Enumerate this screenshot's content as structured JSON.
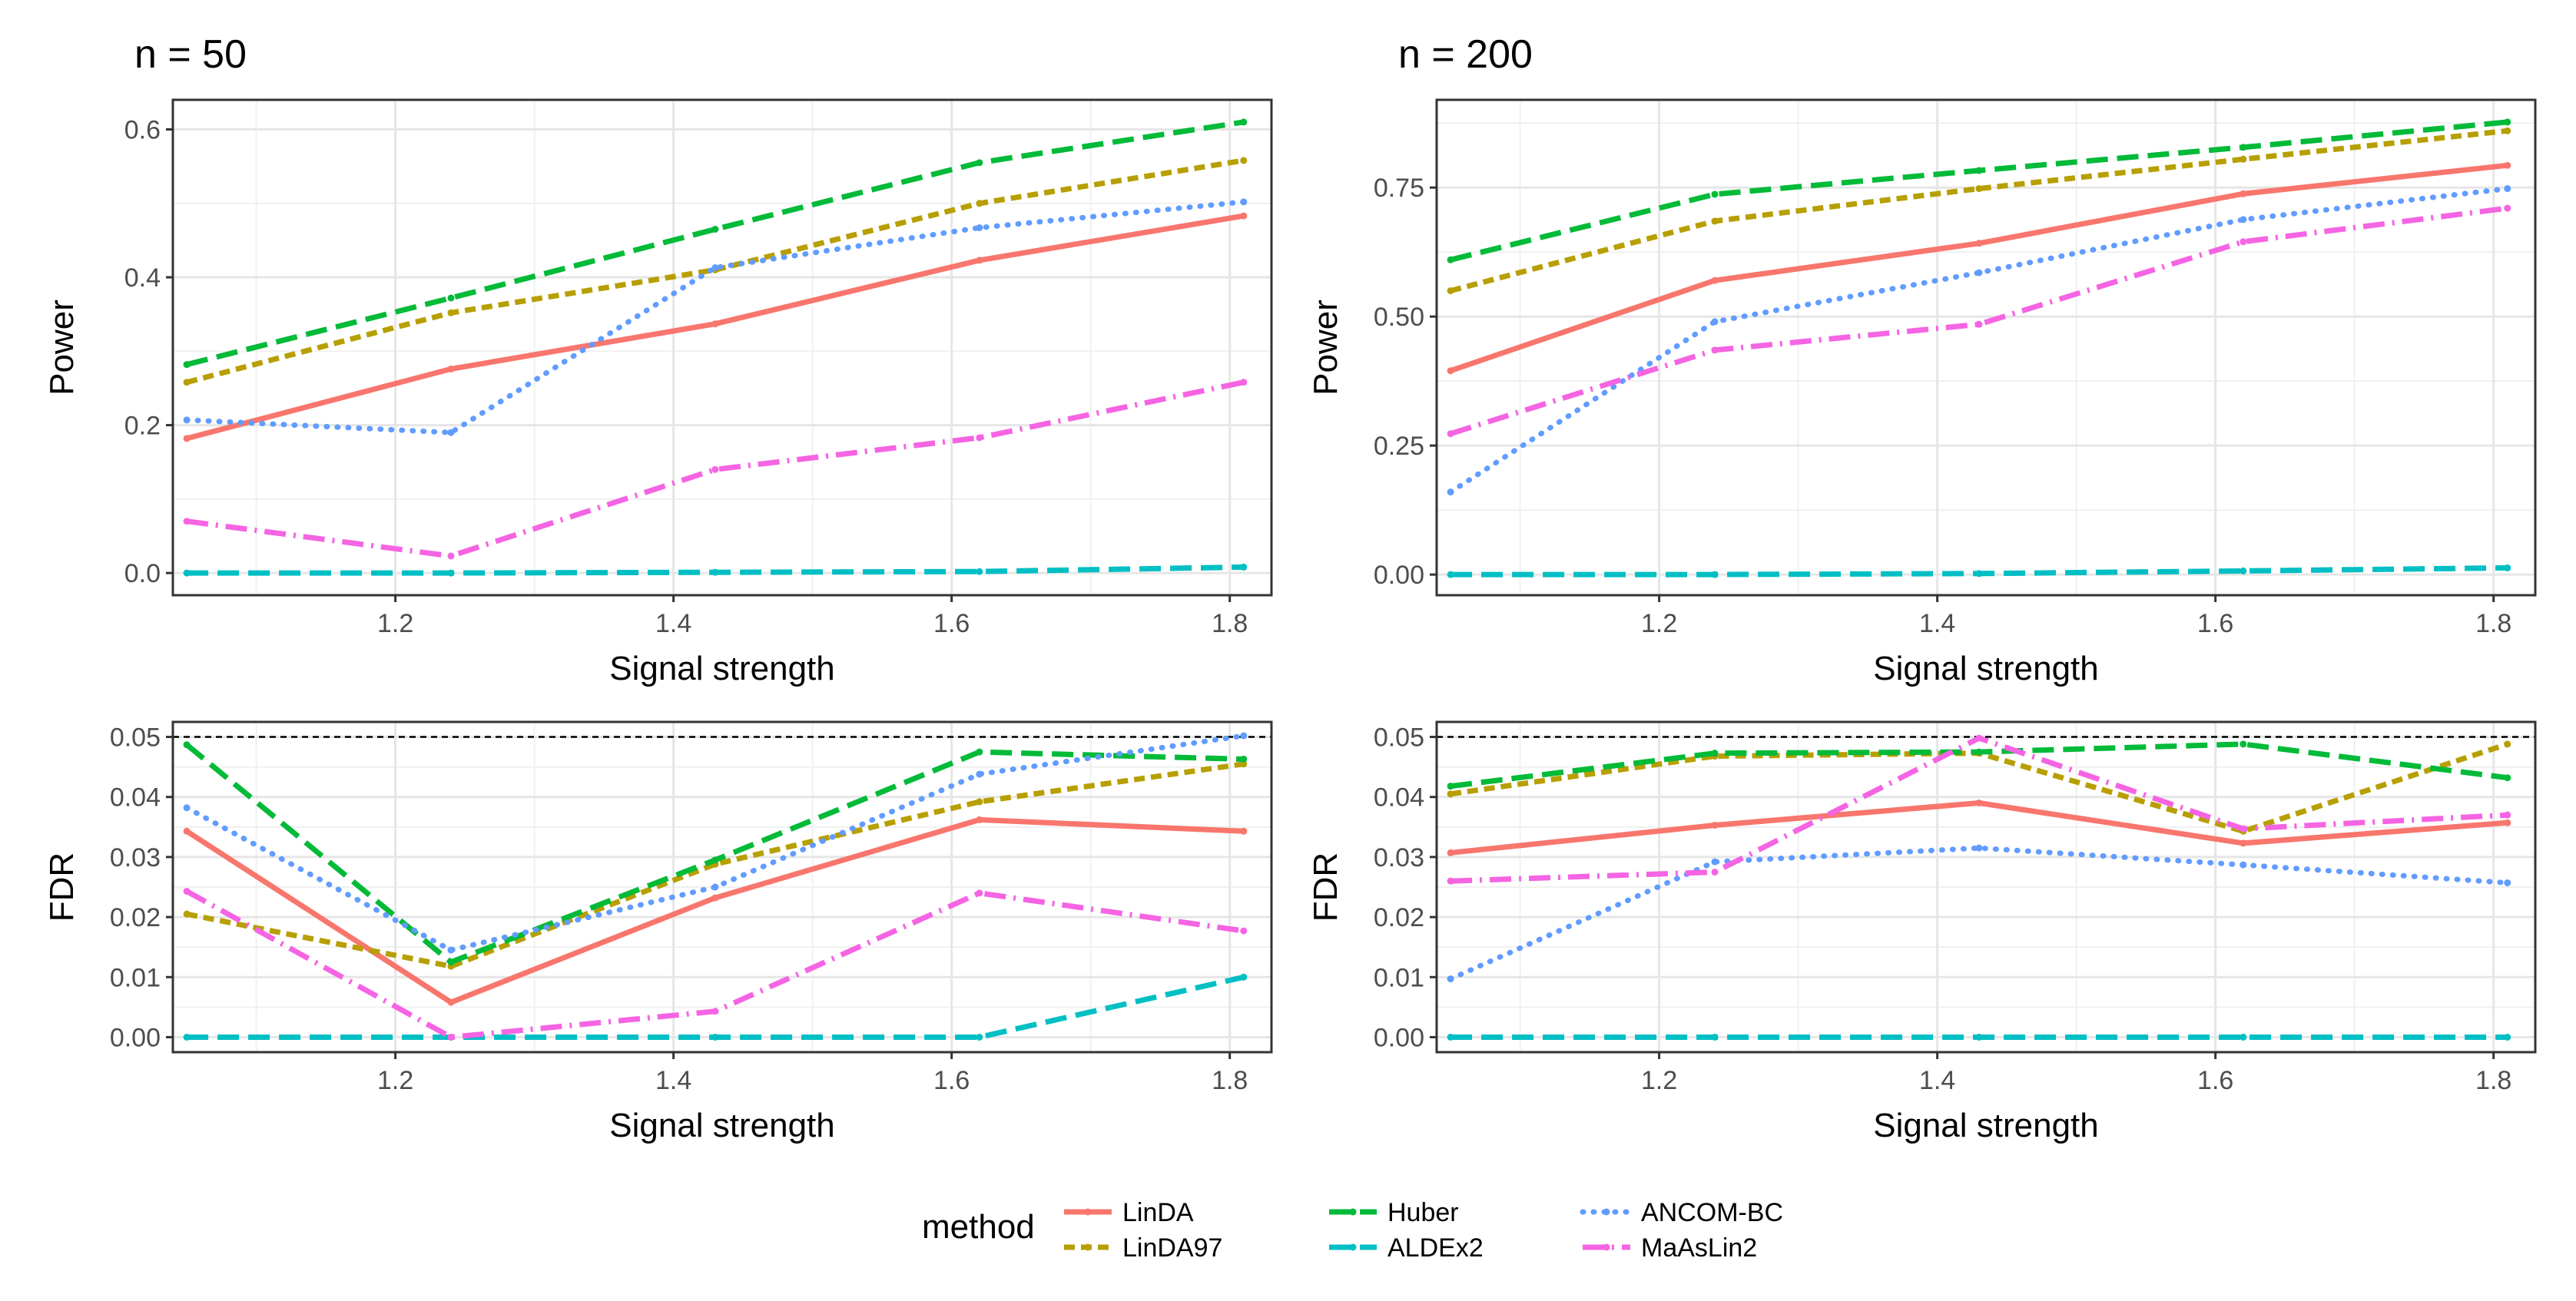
{
  "colors": {
    "LinDA": "#F8766D",
    "LinDA97": "#B79F00",
    "Huber": "#00BA38",
    "ALDEx2": "#00BFC4",
    "ANCOM-BC": "#619CFF",
    "MaAsLin2": "#F564E3"
  },
  "legend": {
    "title": "method",
    "entries": [
      "LinDA",
      "LinDA97",
      "Huber",
      "ALDEx2",
      "ANCOM-BC",
      "MaAsLin2"
    ]
  },
  "chart_data": [
    {
      "type": "line",
      "title": "n = 50",
      "xlabel": "Signal strength",
      "ylabel": "Power",
      "xlim": [
        1.04,
        1.83
      ],
      "ylim": [
        -0.03,
        0.64
      ],
      "xticks": [
        1.2,
        1.4,
        1.6,
        1.8
      ],
      "yticks": [
        0.0,
        0.2,
        0.4,
        0.6
      ],
      "ytick_labels": [
        "0.0",
        "0.2",
        "0.4",
        "0.6"
      ],
      "x": [
        1.05,
        1.24,
        1.43,
        1.62,
        1.81
      ],
      "series": [
        {
          "name": "LinDA",
          "values": [
            0.182,
            0.276,
            0.337,
            0.423,
            0.483
          ]
        },
        {
          "name": "LinDA97",
          "values": [
            0.258,
            0.352,
            0.41,
            0.5,
            0.558
          ]
        },
        {
          "name": "Huber",
          "values": [
            0.282,
            0.372,
            0.465,
            0.555,
            0.61
          ]
        },
        {
          "name": "ALDEx2",
          "values": [
            0.0,
            0.0,
            0.001,
            0.002,
            0.008
          ]
        },
        {
          "name": "ANCOM-BC",
          "values": [
            0.207,
            0.19,
            0.413,
            0.467,
            0.502
          ]
        },
        {
          "name": "MaAsLin2",
          "values": [
            0.07,
            0.023,
            0.14,
            0.183,
            0.258
          ]
        }
      ]
    },
    {
      "type": "line",
      "title": "n = 200",
      "xlabel": "Signal strength",
      "ylabel": "Power",
      "xlim": [
        1.04,
        1.83
      ],
      "ylim": [
        -0.04,
        0.92
      ],
      "xticks": [
        1.2,
        1.4,
        1.6,
        1.8
      ],
      "yticks": [
        0.0,
        0.25,
        0.5,
        0.75
      ],
      "ytick_labels": [
        "0.00",
        "0.25",
        "0.50",
        "0.75"
      ],
      "x": [
        1.05,
        1.24,
        1.43,
        1.62,
        1.81
      ],
      "series": [
        {
          "name": "LinDA",
          "values": [
            0.395,
            0.57,
            0.642,
            0.738,
            0.793
          ]
        },
        {
          "name": "LinDA97",
          "values": [
            0.55,
            0.685,
            0.748,
            0.805,
            0.86
          ]
        },
        {
          "name": "Huber",
          "values": [
            0.61,
            0.737,
            0.783,
            0.828,
            0.877
          ]
        },
        {
          "name": "ALDEx2",
          "values": [
            0.0,
            0.0,
            0.002,
            0.007,
            0.013
          ]
        },
        {
          "name": "ANCOM-BC",
          "values": [
            0.16,
            0.49,
            0.585,
            0.688,
            0.748
          ]
        },
        {
          "name": "MaAsLin2",
          "values": [
            0.273,
            0.435,
            0.485,
            0.645,
            0.71
          ]
        }
      ]
    },
    {
      "type": "line",
      "xlabel": "Signal strength",
      "ylabel": "FDR",
      "xlim": [
        1.04,
        1.83
      ],
      "ylim": [
        -0.0025,
        0.0525
      ],
      "xticks": [
        1.2,
        1.4,
        1.6,
        1.8
      ],
      "yticks": [
        0.0,
        0.01,
        0.02,
        0.03,
        0.04,
        0.05
      ],
      "ytick_labels": [
        "0.00",
        "0.01",
        "0.02",
        "0.03",
        "0.04",
        "0.05"
      ],
      "reference_line": 0.05,
      "x": [
        1.05,
        1.24,
        1.43,
        1.62,
        1.81
      ],
      "series": [
        {
          "name": "LinDA",
          "values": [
            0.0343,
            0.0058,
            0.0232,
            0.0362,
            0.0343
          ]
        },
        {
          "name": "LinDA97",
          "values": [
            0.0205,
            0.0118,
            0.0288,
            0.0392,
            0.0455
          ]
        },
        {
          "name": "Huber",
          "values": [
            0.0487,
            0.0125,
            0.0295,
            0.0475,
            0.0463
          ]
        },
        {
          "name": "ALDEx2",
          "values": [
            0.0,
            0.0,
            0.0,
            0.0,
            0.01
          ]
        },
        {
          "name": "ANCOM-BC",
          "values": [
            0.0382,
            0.0145,
            0.025,
            0.0438,
            0.0502
          ]
        },
        {
          "name": "MaAsLin2",
          "values": [
            0.0243,
            0.0,
            0.0043,
            0.024,
            0.0177
          ]
        }
      ]
    },
    {
      "type": "line",
      "xlabel": "Signal strength",
      "ylabel": "FDR",
      "xlim": [
        1.04,
        1.83
      ],
      "ylim": [
        -0.0025,
        0.0525
      ],
      "xticks": [
        1.2,
        1.4,
        1.6,
        1.8
      ],
      "yticks": [
        0.0,
        0.01,
        0.02,
        0.03,
        0.04,
        0.05
      ],
      "ytick_labels": [
        "0.00",
        "0.01",
        "0.02",
        "0.03",
        "0.04",
        "0.05"
      ],
      "reference_line": 0.05,
      "x": [
        1.05,
        1.24,
        1.43,
        1.62,
        1.81
      ],
      "series": [
        {
          "name": "LinDA",
          "values": [
            0.0307,
            0.0353,
            0.039,
            0.0323,
            0.0357
          ]
        },
        {
          "name": "LinDA97",
          "values": [
            0.0405,
            0.0468,
            0.0473,
            0.0343,
            0.0488
          ]
        },
        {
          "name": "Huber",
          "values": [
            0.0418,
            0.0473,
            0.0475,
            0.0488,
            0.0432
          ]
        },
        {
          "name": "ALDEx2",
          "values": [
            0.0,
            0.0,
            0.0,
            0.0,
            0.0
          ]
        },
        {
          "name": "ANCOM-BC",
          "values": [
            0.0097,
            0.0292,
            0.0315,
            0.0287,
            0.0257
          ]
        },
        {
          "name": "MaAsLin2",
          "values": [
            0.026,
            0.0275,
            0.0498,
            0.0347,
            0.037
          ]
        }
      ]
    }
  ]
}
